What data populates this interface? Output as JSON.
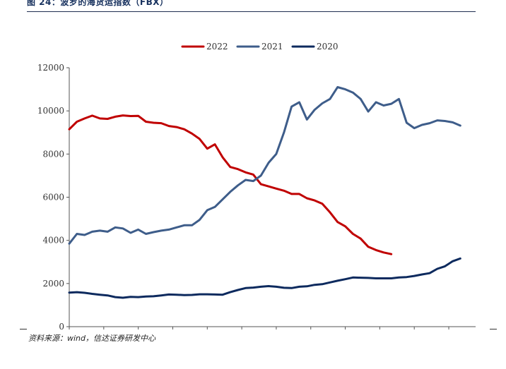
{
  "figure": {
    "title": "图 24：波罗的海货运指数（FBX）",
    "source_prefix": "资料来源：",
    "source_en": "wind",
    "source_suffix": "，信达证券研发中心"
  },
  "chart_data": {
    "type": "line",
    "title": "",
    "xlabel": "",
    "ylabel": "",
    "ylim": [
      0,
      12000
    ],
    "yticks": [
      0,
      2000,
      4000,
      6000,
      8000,
      10000,
      12000
    ],
    "x_count": 54,
    "x_tick_every": 4.5,
    "grid": false,
    "legend_position": "top-center",
    "series": [
      {
        "name": "2022",
        "color": "#c00000",
        "values": [
          9150,
          9500,
          9650,
          9780,
          9650,
          9630,
          9730,
          9790,
          9760,
          9770,
          9500,
          9450,
          9430,
          9300,
          9250,
          9150,
          8950,
          8700,
          8250,
          8450,
          7850,
          7400,
          7300,
          7150,
          7050,
          6600,
          6500,
          6400,
          6300,
          6150,
          6150,
          5950,
          5850,
          5700,
          5300,
          4850,
          4650,
          4300,
          4080,
          3700,
          3550,
          3440,
          3360
        ]
      },
      {
        "name": "2021",
        "color": "#3e5d8a",
        "values": [
          3850,
          4300,
          4250,
          4400,
          4450,
          4400,
          4600,
          4550,
          4350,
          4500,
          4300,
          4380,
          4450,
          4500,
          4600,
          4700,
          4700,
          4950,
          5400,
          5550,
          5900,
          6250,
          6550,
          6800,
          6750,
          7000,
          7600,
          8000,
          9000,
          10200,
          10400,
          9600,
          10050,
          10350,
          10550,
          11100,
          11000,
          10850,
          10550,
          9970,
          10400,
          10250,
          10330,
          10550,
          9450,
          9200,
          9350,
          9430,
          9560,
          9530,
          9470,
          9320
        ]
      },
      {
        "name": "2020",
        "color": "#0d2a5e",
        "values": [
          1580,
          1600,
          1570,
          1520,
          1480,
          1450,
          1370,
          1340,
          1380,
          1370,
          1400,
          1410,
          1450,
          1490,
          1480,
          1460,
          1470,
          1500,
          1500,
          1490,
          1480,
          1600,
          1700,
          1790,
          1810,
          1850,
          1880,
          1850,
          1800,
          1790,
          1850,
          1870,
          1940,
          1970,
          2050,
          2130,
          2200,
          2280,
          2270,
          2260,
          2240,
          2240,
          2240,
          2280,
          2300,
          2350,
          2420,
          2480,
          2680,
          2800,
          3030,
          3160
        ]
      }
    ]
  }
}
